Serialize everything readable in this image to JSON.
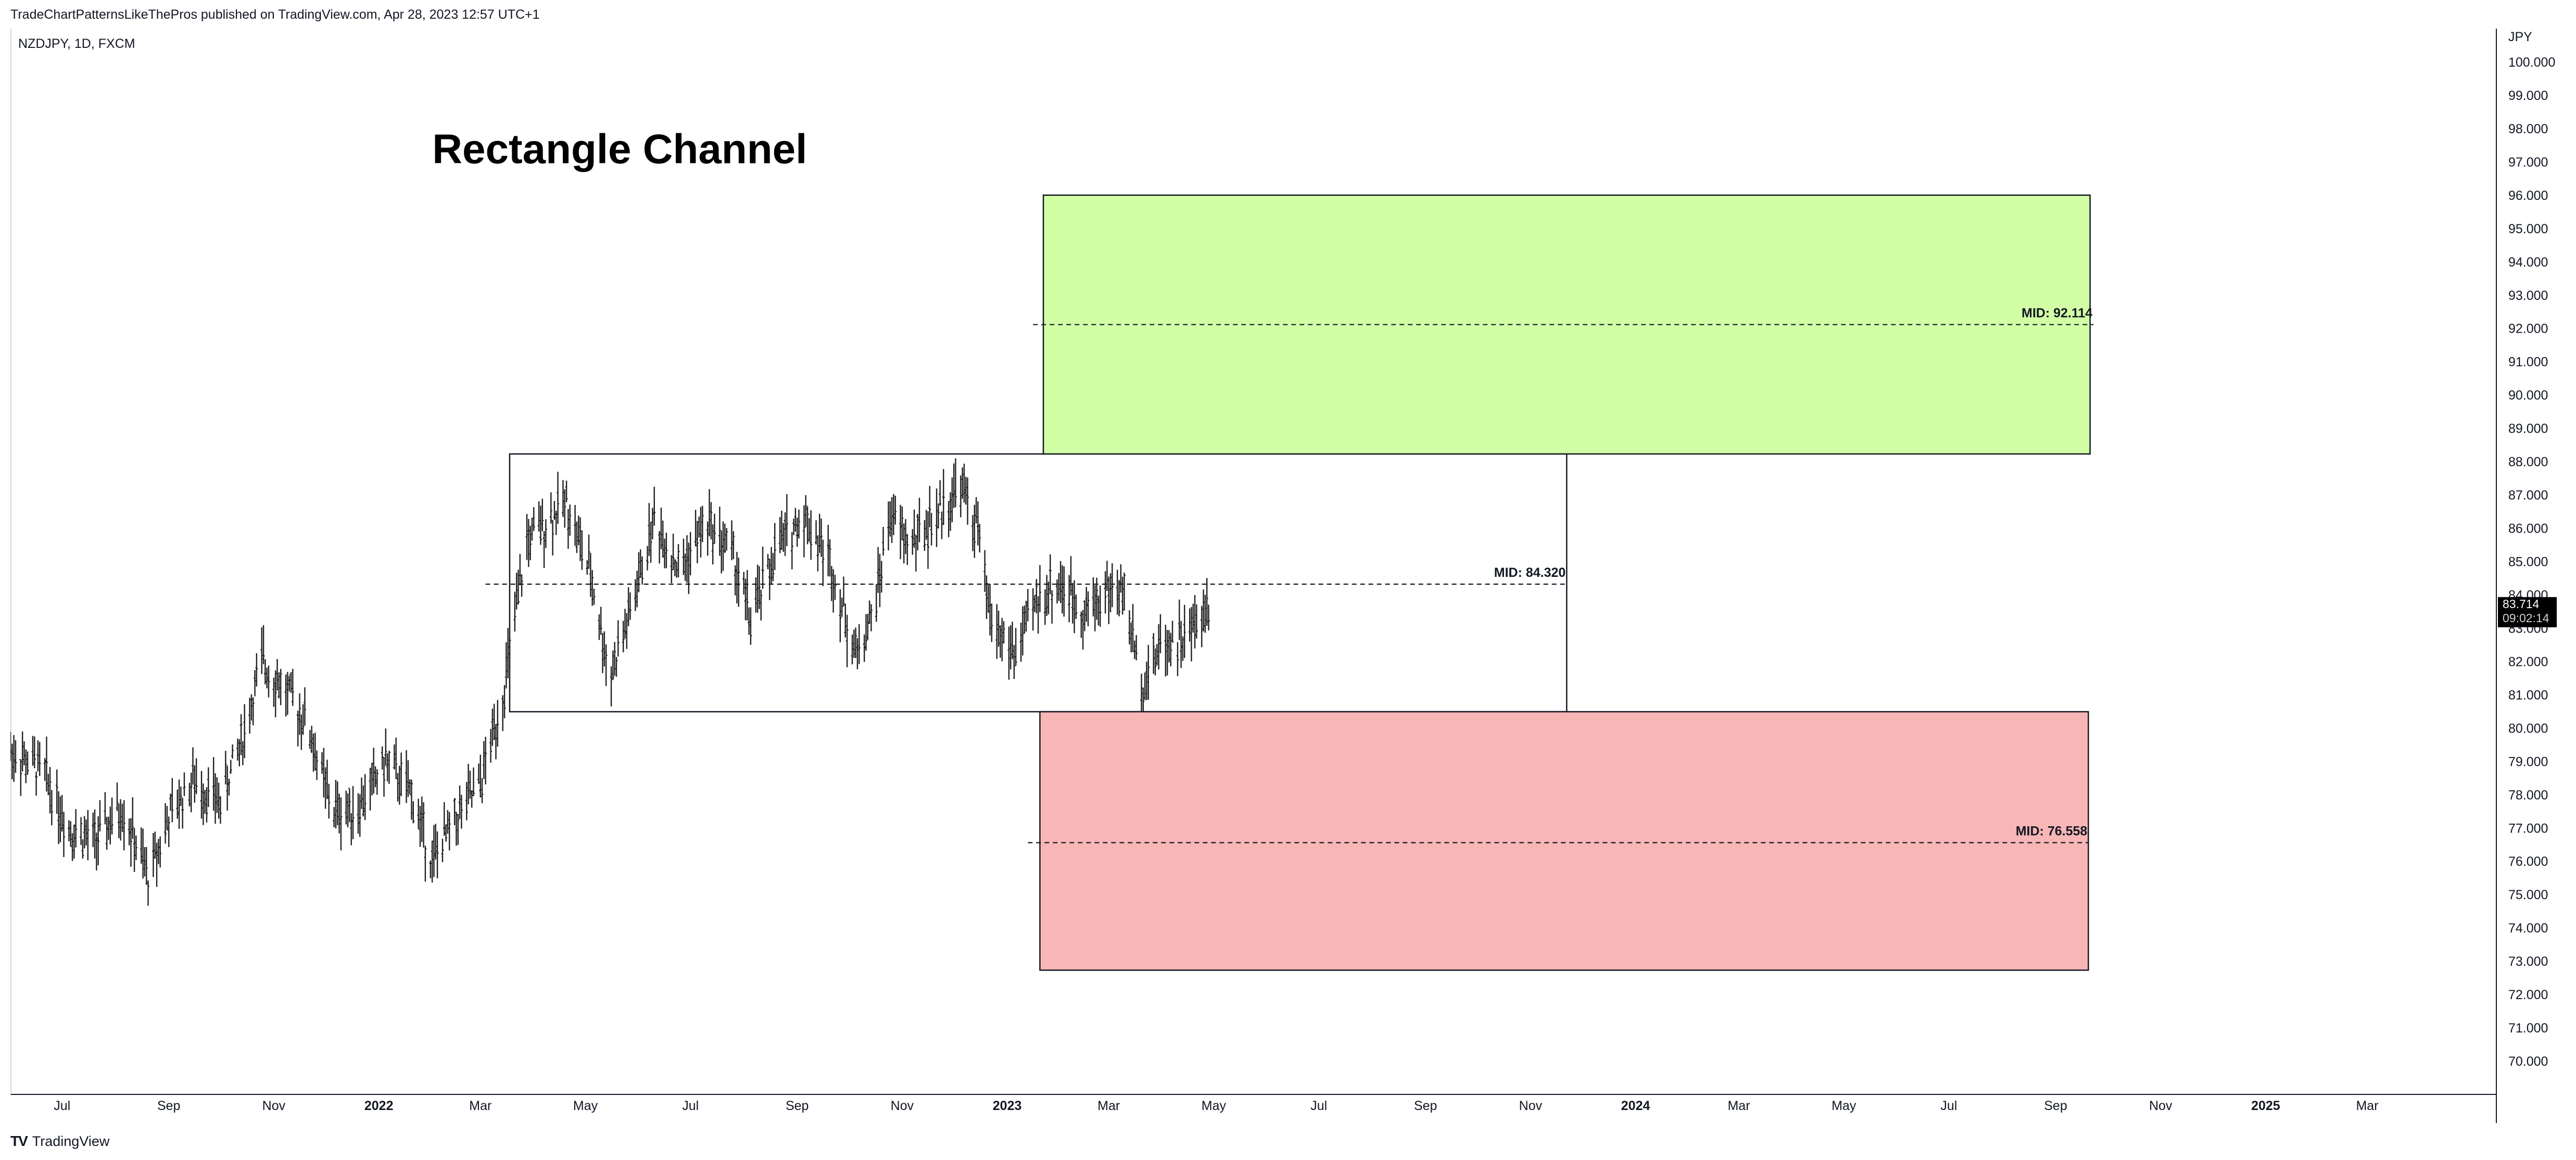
{
  "header": {
    "published_text": "TradeChartPatternsLikeThePros published on TradingView.com, Apr 28, 2023 12:57 UTC+1"
  },
  "symbol_label": "NZDJPY, 1D, FXCM",
  "footer": {
    "brand": "TradingView",
    "logo": "TV"
  },
  "icons": {
    "footer_logo": "tradingview-logo-icon"
  },
  "colors": {
    "up_box": "#d2ffa6",
    "down_box": "#f8b6b6",
    "bars": "#1f1f1f",
    "price_tag_bg": "#000000"
  },
  "chart_data": {
    "type": "bar",
    "title": "Rectangle Channel",
    "currency": "JPY",
    "ylim": [
      69.0,
      101.0
    ],
    "y_ticks": [
      70,
      71,
      72,
      73,
      74,
      75,
      76,
      77,
      78,
      79,
      80,
      81,
      82,
      83,
      84,
      85,
      86,
      87,
      88,
      89,
      90,
      91,
      92,
      93,
      94,
      95,
      96,
      97,
      98,
      99,
      100
    ],
    "y_tick_labels": [
      "70.000",
      "71.000",
      "72.000",
      "73.000",
      "74.000",
      "75.000",
      "76.000",
      "77.000",
      "78.000",
      "79.000",
      "80.000",
      "81.000",
      "82.000",
      "83.000",
      "84.000",
      "85.000",
      "86.000",
      "87.000",
      "88.000",
      "89.000",
      "90.000",
      "91.000",
      "92.000",
      "93.000",
      "94.000",
      "95.000",
      "96.000",
      "97.000",
      "98.000",
      "99.000",
      "100.000"
    ],
    "xlim": [
      "2021-06-01",
      "2025-05-15"
    ],
    "x_ticks": [
      {
        "date": "2021-07-01",
        "label": "Jul",
        "bold": false
      },
      {
        "date": "2021-09-01",
        "label": "Sep",
        "bold": false
      },
      {
        "date": "2021-11-01",
        "label": "Nov",
        "bold": false
      },
      {
        "date": "2022-01-01",
        "label": "2022",
        "bold": true
      },
      {
        "date": "2022-03-01",
        "label": "Mar",
        "bold": false
      },
      {
        "date": "2022-05-01",
        "label": "May",
        "bold": false
      },
      {
        "date": "2022-07-01",
        "label": "Jul",
        "bold": false
      },
      {
        "date": "2022-09-01",
        "label": "Sep",
        "bold": false
      },
      {
        "date": "2022-11-01",
        "label": "Nov",
        "bold": false
      },
      {
        "date": "2023-01-01",
        "label": "2023",
        "bold": true
      },
      {
        "date": "2023-03-01",
        "label": "Mar",
        "bold": false
      },
      {
        "date": "2023-05-01",
        "label": "May",
        "bold": false
      },
      {
        "date": "2023-07-01",
        "label": "Jul",
        "bold": false
      },
      {
        "date": "2023-09-01",
        "label": "Sep",
        "bold": false
      },
      {
        "date": "2023-11-01",
        "label": "Nov",
        "bold": false
      },
      {
        "date": "2024-01-01",
        "label": "2024",
        "bold": true
      },
      {
        "date": "2024-03-01",
        "label": "Mar",
        "bold": false
      },
      {
        "date": "2024-05-01",
        "label": "May",
        "bold": false
      },
      {
        "date": "2024-07-01",
        "label": "Jul",
        "bold": false
      },
      {
        "date": "2024-09-01",
        "label": "Sep",
        "bold": false
      },
      {
        "date": "2024-11-01",
        "label": "Nov",
        "bold": false
      },
      {
        "date": "2025-01-01",
        "label": "2025",
        "bold": true
      },
      {
        "date": "2025-03-01",
        "label": "Mar",
        "bold": false
      }
    ],
    "price_series": {
      "from": "2021-06-01",
      "to": "2023-04-28",
      "anchors": [
        [
          "2021-06-01",
          79.3
        ],
        [
          "2021-06-20",
          78.7
        ],
        [
          "2021-07-05",
          77.0
        ],
        [
          "2021-07-20",
          76.6
        ],
        [
          "2021-08-05",
          77.6
        ],
        [
          "2021-08-20",
          75.5
        ],
        [
          "2021-09-01",
          77.3
        ],
        [
          "2021-09-15",
          78.4
        ],
        [
          "2021-10-01",
          77.8
        ],
        [
          "2021-10-15",
          79.9
        ],
        [
          "2021-10-25",
          82.0
        ],
        [
          "2021-11-05",
          81.3
        ],
        [
          "2021-11-20",
          80.2
        ],
        [
          "2021-12-05",
          77.5
        ],
        [
          "2021-12-20",
          77.6
        ],
        [
          "2022-01-05",
          79.0
        ],
        [
          "2022-01-20",
          78.0
        ],
        [
          "2022-02-01",
          76.0
        ],
        [
          "2022-02-15",
          77.3
        ],
        [
          "2022-03-01",
          78.3
        ],
        [
          "2022-03-15",
          81.2
        ],
        [
          "2022-03-28",
          85.6
        ],
        [
          "2022-04-05",
          86.0
        ],
        [
          "2022-04-20",
          86.8
        ],
        [
          "2022-05-05",
          84.4
        ],
        [
          "2022-05-15",
          81.5
        ],
        [
          "2022-05-28",
          83.6
        ],
        [
          "2022-06-10",
          86.3
        ],
        [
          "2022-06-25",
          84.7
        ],
        [
          "2022-07-10",
          86.2
        ],
        [
          "2022-07-25",
          85.3
        ],
        [
          "2022-08-05",
          83.2
        ],
        [
          "2022-08-20",
          85.4
        ],
        [
          "2022-09-05",
          86.4
        ],
        [
          "2022-09-20",
          85.0
        ],
        [
          "2022-10-05",
          82.2
        ],
        [
          "2022-10-15",
          83.4
        ],
        [
          "2022-10-25",
          86.4
        ],
        [
          "2022-11-05",
          85.5
        ],
        [
          "2022-11-20",
          86.3
        ],
        [
          "2022-12-05",
          87.3
        ],
        [
          "2022-12-15",
          85.9
        ],
        [
          "2022-12-22",
          83.3
        ],
        [
          "2023-01-05",
          82.2
        ],
        [
          "2023-01-20",
          84.0
        ],
        [
          "2023-02-01",
          84.3
        ],
        [
          "2023-02-15",
          83.5
        ],
        [
          "2023-03-01",
          84.2
        ],
        [
          "2023-03-10",
          84.0
        ],
        [
          "2023-03-20",
          81.3
        ],
        [
          "2023-04-01",
          82.6
        ],
        [
          "2023-04-15",
          82.7
        ],
        [
          "2023-04-28",
          83.714
        ]
      ]
    },
    "last_price": {
      "value": "83.714",
      "countdown": "09:02:14"
    },
    "annotations": [
      {
        "kind": "text",
        "text": "Rectangle Channel",
        "date": "2022-02-01",
        "price": 97.4
      },
      {
        "kind": "rectangle",
        "name": "channel-rectangle",
        "from": "2022-03-18",
        "to": "2023-11-22",
        "top": 88.23,
        "bottom": 80.49,
        "fill": "none"
      },
      {
        "kind": "rectangle",
        "name": "green-target-box",
        "from": "2023-01-22",
        "to": "2024-09-21",
        "top": 96.0,
        "bottom": 88.23,
        "fill": "#d2ffa6"
      },
      {
        "kind": "rectangle",
        "name": "red-target-box",
        "from": "2023-01-20",
        "to": "2024-09-20",
        "top": 80.49,
        "bottom": 72.73,
        "fill": "#f8b6b6"
      },
      {
        "kind": "midline",
        "name": "channel-mid",
        "from": "2022-03-04",
        "to": "2023-11-22",
        "price": 84.32,
        "label": "MID: 84.320"
      },
      {
        "kind": "midline",
        "name": "green-mid",
        "from": "2023-01-16",
        "to": "2024-09-23",
        "price": 92.114,
        "label": "MID: 92.114"
      },
      {
        "kind": "midline",
        "name": "red-mid",
        "from": "2023-01-13",
        "to": "2024-09-20",
        "price": 76.558,
        "label": "MID: 76.558"
      }
    ]
  }
}
